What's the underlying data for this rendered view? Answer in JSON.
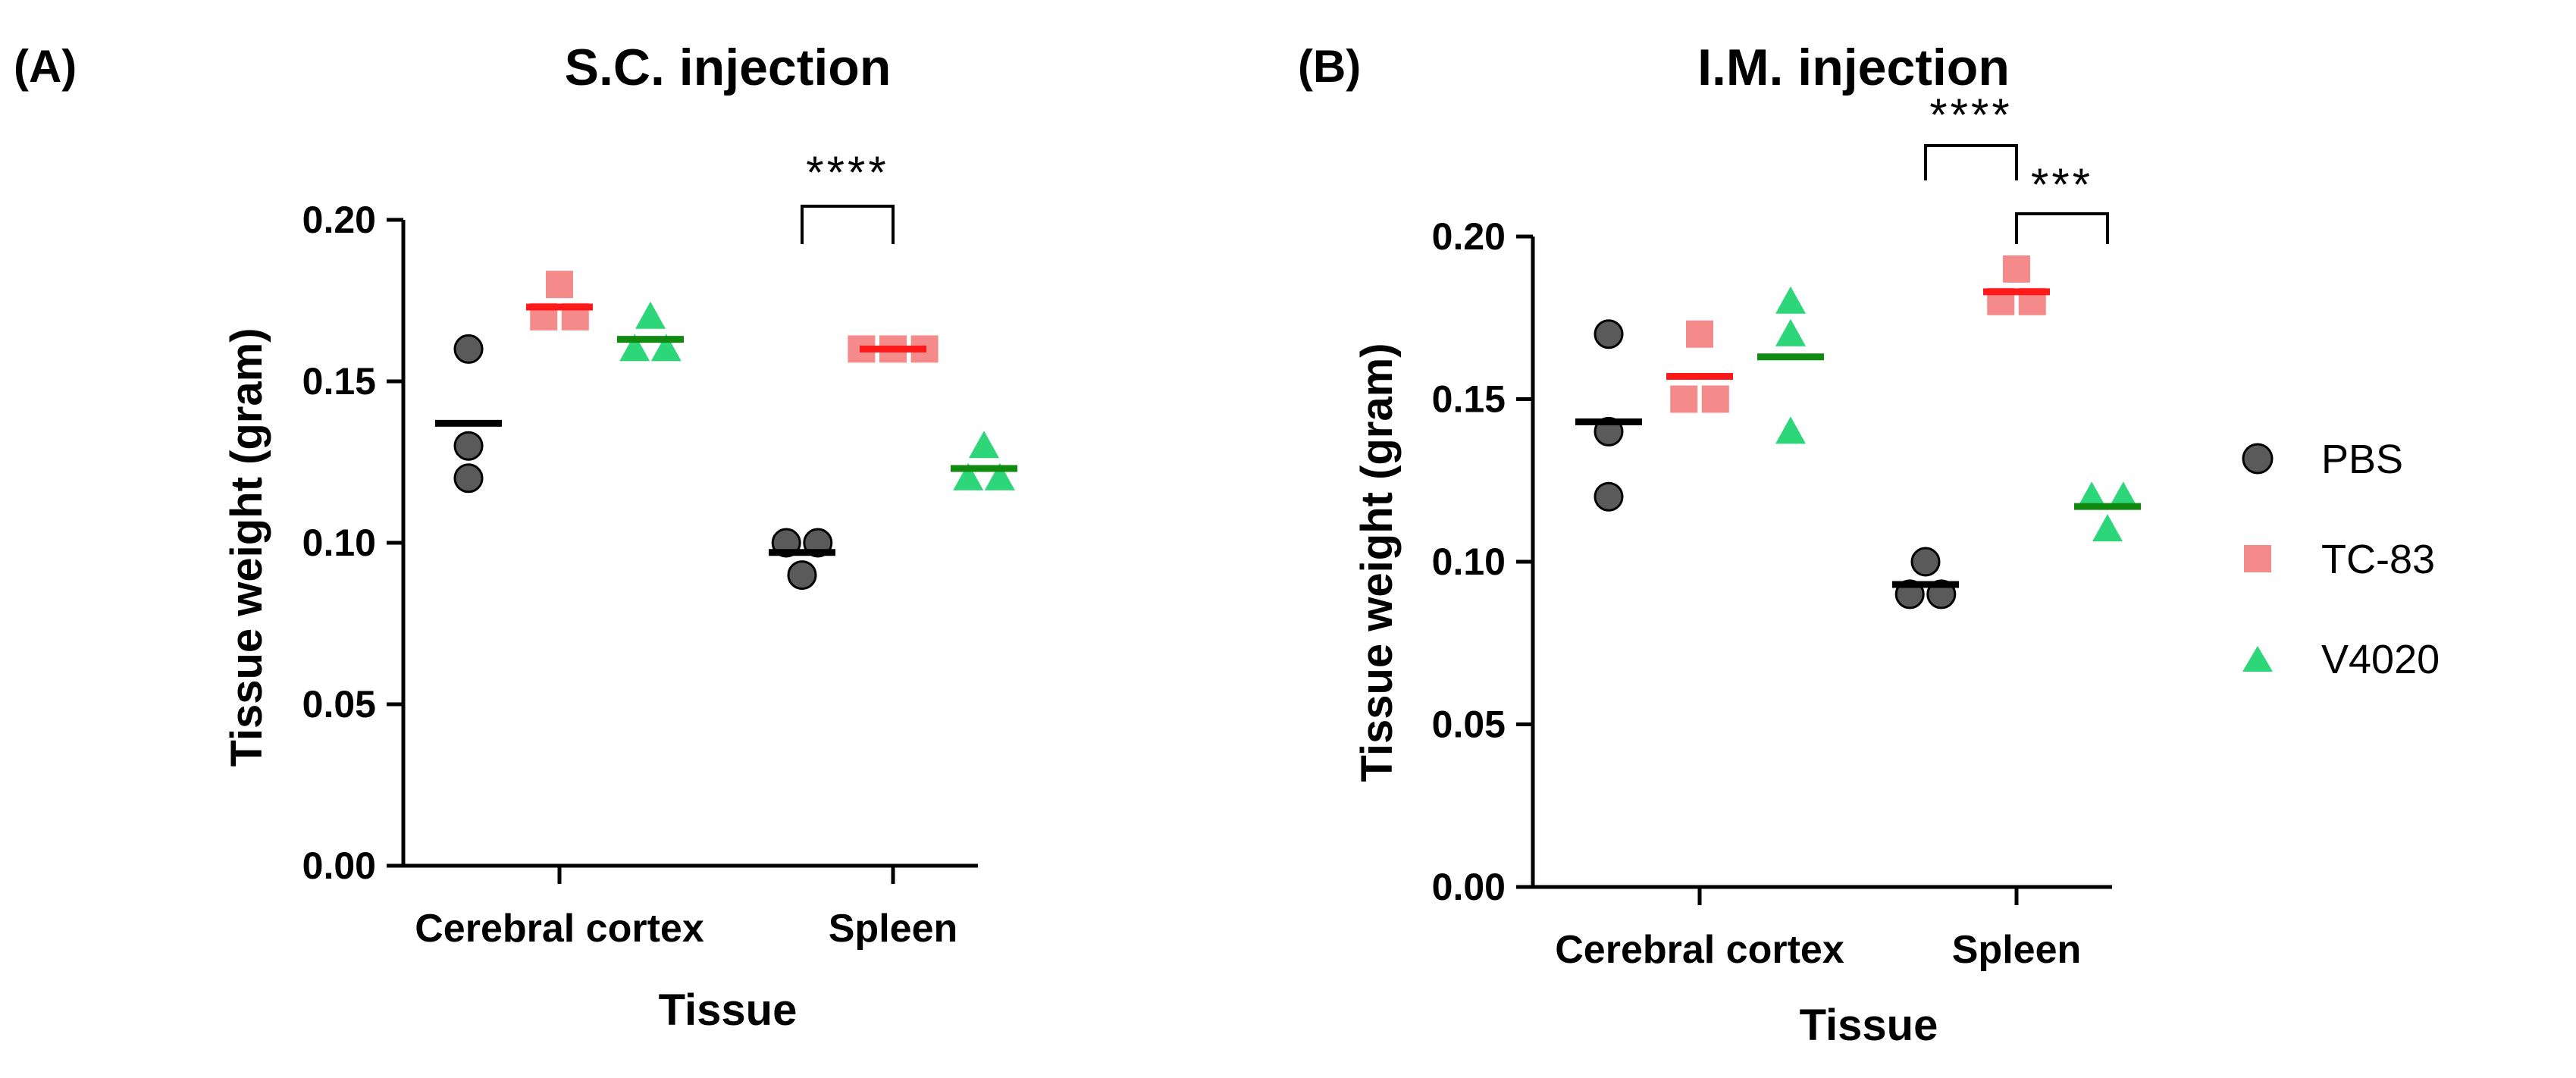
{
  "figure": {
    "panels": [
      {
        "panel_label": "(A)",
        "title": "S.C. injection",
        "ylabel": "Tissue weight (gram)",
        "xlabel": "Tissue",
        "y_tick_labels": [
          "0.00",
          "0.05",
          "0.10",
          "0.15",
          "0.20"
        ],
        "categories": [
          "Cerebral cortex",
          "Spleen"
        ],
        "significance": [
          {
            "label": "****",
            "category": "Spleen",
            "from": "PBS",
            "to": "TC-83"
          }
        ]
      },
      {
        "panel_label": "(B)",
        "title": "I.M. injection",
        "ylabel": "Tissue weight (gram)",
        "xlabel": "Tissue",
        "y_tick_labels": [
          "0.00",
          "0.05",
          "0.10",
          "0.15",
          "0.20"
        ],
        "categories": [
          "Cerebral cortex",
          "Spleen"
        ],
        "significance": [
          {
            "label": "****",
            "category": "Spleen",
            "from": "PBS",
            "to": "TC-83"
          },
          {
            "label": "***",
            "category": "Spleen",
            "from": "TC-83",
            "to": "V4020"
          }
        ]
      }
    ],
    "legend": [
      {
        "name": "PBS",
        "shape": "circle",
        "color": "#5a5a5a",
        "line_color": "#000000"
      },
      {
        "name": "TC-83",
        "shape": "square",
        "color": "#f58a8a",
        "line_color": "#ff1a1a"
      },
      {
        "name": "V4020",
        "shape": "triangle",
        "color": "#2ed67a",
        "line_color": "#108a10"
      }
    ]
  },
  "chart_data": [
    {
      "type": "scatter",
      "title": "S.C. injection",
      "xlabel": "Tissue",
      "ylabel": "Tissue weight (gram)",
      "ylim": [
        0,
        0.2
      ],
      "yticks": [
        0,
        0.05,
        0.1,
        0.15,
        0.2
      ],
      "categories": [
        "Cerebral cortex",
        "Spleen"
      ],
      "series": [
        {
          "name": "PBS",
          "points": [
            [
              0.16,
              0.13,
              0.12
            ],
            [
              0.1,
              0.1,
              0.09
            ]
          ],
          "means": [
            0.137,
            0.097
          ]
        },
        {
          "name": "TC-83",
          "points": [
            [
              0.18,
              0.17,
              0.17
            ],
            [
              0.16,
              0.16,
              0.16
            ]
          ],
          "means": [
            0.173,
            0.16
          ]
        },
        {
          "name": "V4020",
          "points": [
            [
              0.17,
              0.16,
              0.16
            ],
            [
              0.13,
              0.12,
              0.12
            ]
          ],
          "means": [
            0.163,
            0.123
          ]
        }
      ],
      "grid": false,
      "legend": "right"
    },
    {
      "type": "scatter",
      "title": "I.M. injection",
      "xlabel": "Tissue",
      "ylabel": "Tissue weight (gram)",
      "ylim": [
        0,
        0.2
      ],
      "yticks": [
        0,
        0.05,
        0.1,
        0.15,
        0.2
      ],
      "categories": [
        "Cerebral cortex",
        "Spleen"
      ],
      "series": [
        {
          "name": "PBS",
          "points": [
            [
              0.17,
              0.14,
              0.12
            ],
            [
              0.1,
              0.09,
              0.09
            ]
          ],
          "means": [
            0.143,
            0.093
          ]
        },
        {
          "name": "TC-83",
          "points": [
            [
              0.17,
              0.15,
              0.15
            ],
            [
              0.19,
              0.18,
              0.18
            ]
          ],
          "means": [
            0.157,
            0.183
          ]
        },
        {
          "name": "V4020",
          "points": [
            [
              0.18,
              0.17,
              0.14
            ],
            [
              0.12,
              0.12,
              0.11
            ]
          ],
          "means": [
            0.163,
            0.117
          ]
        }
      ],
      "grid": false,
      "legend": "right"
    }
  ]
}
